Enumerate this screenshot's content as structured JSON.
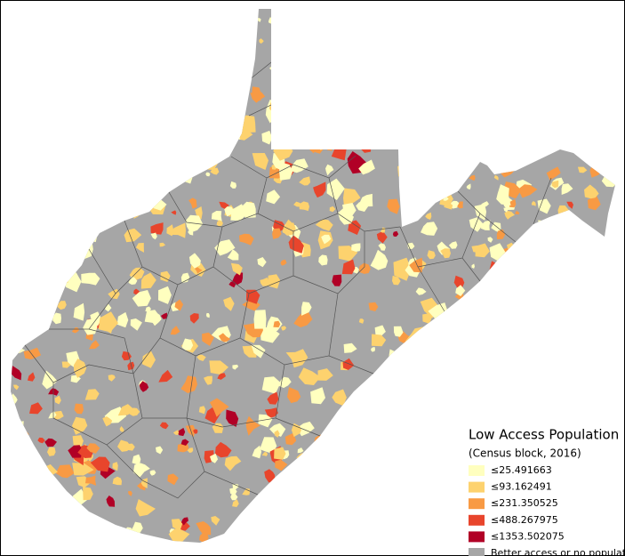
{
  "legend": {
    "title": "Low Access Population",
    "subtitle": "(Census block, 2016)",
    "items": [
      {
        "label": "≤25.491663",
        "color": "#ffffbf"
      },
      {
        "label": "≤93.162491",
        "color": "#fdd26e"
      },
      {
        "label": "≤231.350525",
        "color": "#f89a44"
      },
      {
        "label": "≤488.267975",
        "color": "#e8452c"
      },
      {
        "label": "≤1353.502075",
        "color": "#b10026"
      },
      {
        "label": "Better access or no population",
        "color": "#a6a6a6"
      }
    ]
  }
}
